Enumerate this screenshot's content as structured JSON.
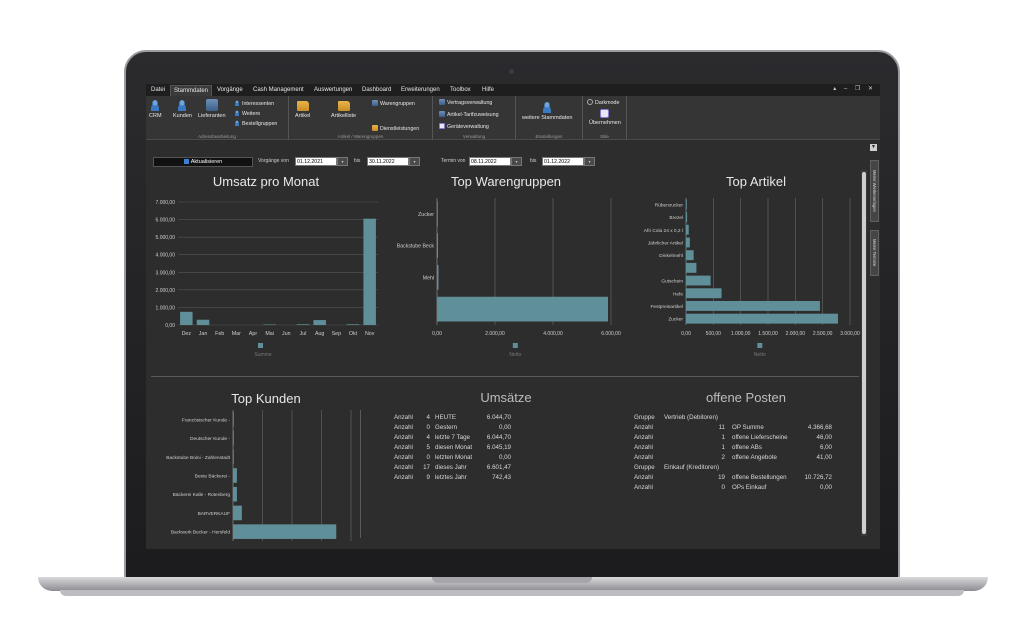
{
  "menu": {
    "tabs": [
      "Datei",
      "Stammdaten",
      "Vorgänge",
      "Cash Management",
      "Auswertungen",
      "Dashboard",
      "Erweiterungen",
      "Toolbox",
      "Hilfe"
    ],
    "active": "Stammdaten"
  },
  "ribbon": {
    "g1": {
      "label": "Adressbearbeitung",
      "crm": "CRM",
      "kunden": "Kunden",
      "lieferanten": "Lieferanten",
      "interessenten": "Interessenten",
      "weitere": "Weitere",
      "bestellgruppen": "Bestellgruppen"
    },
    "g2": {
      "label": "Artikel / Warengruppen",
      "artikel": "Artikel",
      "artikelliste": "Artikelliste",
      "warengruppen": "Warengruppen",
      "dienstleistungen": "Dienstleistungen"
    },
    "g3": {
      "label": "Verwaltung",
      "vertrag": "Vertragsverwaltung",
      "tarif": "Artikel-Tarifzuweisung",
      "geraete": "Geräteverwaltung"
    },
    "g4": {
      "label": "Einstellungen",
      "weitere_stammdaten": "weitere Stammdaten"
    },
    "g5": {
      "label": "Stile",
      "darkmode": "Darkmode",
      "uebernehmen": "Übernehmen"
    }
  },
  "filter": {
    "refresh_label": "Aktualisieren",
    "vorgaenge_von_label": "Vorgänge von",
    "vorgaenge_von": "01.12.2021",
    "bis1_label": "bis",
    "bis1": "30.11.2022",
    "termin_von_label": "Termin von",
    "termin_von": "08.11.2022",
    "bis2_label": "bis",
    "bis2": "01.12.2022"
  },
  "side_tabs": [
    "Meine Wiedervorlagen",
    "Meine Termine"
  ],
  "panels": {
    "umsatz_title": "Umsatz pro Monat",
    "warengruppen_title": "Top Warengruppen",
    "artikel_title": "Top Artikel",
    "kunden_title": "Top Kunden",
    "umsaetze_title": "Umsätze",
    "posten_title": "offene Posten"
  },
  "chart_data": [
    {
      "type": "bar",
      "title": "Umsatz pro Monat",
      "categories": [
        "Dez",
        "Jan",
        "Feb",
        "Mar",
        "Apr",
        "Mai",
        "Jun",
        "Jul",
        "Aug",
        "Sep",
        "Okt",
        "Nov"
      ],
      "series": [
        {
          "name": "Summe",
          "values": [
            750,
            300,
            0,
            0,
            0,
            30,
            0,
            40,
            280,
            0,
            40,
            6050
          ]
        }
      ],
      "yticks": [
        "0,00",
        "1.000,00",
        "2.000,00",
        "3.000,00",
        "4.000,00",
        "5.000,00",
        "6.000,00",
        "7.000,00"
      ],
      "ylim": [
        0,
        7000
      ],
      "color": "#5f8f98"
    },
    {
      "type": "bar",
      "orientation": "horizontal",
      "title": "Top Warengruppen",
      "categories": [
        "Zucker",
        "Backstube Beck",
        "Mehl",
        ""
      ],
      "series": [
        {
          "name": "Netto",
          "values": [
            20,
            40,
            60,
            6880
          ]
        }
      ],
      "xticks": [
        "0,00",
        "2.000,00",
        "4.000,00",
        "6.000,00"
      ],
      "xlim": [
        0,
        7000
      ],
      "color": "#5f8f98"
    },
    {
      "type": "bar",
      "orientation": "horizontal",
      "title": "Top Artikel",
      "categories": [
        "Rübenzucker",
        "Brezel",
        "Afri Cola 24 x 0,2 l",
        "Jährlicher Artikel",
        "Dinkelmehl",
        "",
        "Gutschein",
        "Hefe",
        "Festpreisartikel",
        "Zucker"
      ],
      "series": [
        {
          "name": "Netto",
          "values": [
            10,
            20,
            50,
            70,
            140,
            190,
            450,
            650,
            2450,
            2780
          ]
        }
      ],
      "xticks": [
        "0,00",
        "500,00",
        "1.000,00",
        "1.500,00",
        "2.000,00",
        "2.500,00",
        "3.000,00"
      ],
      "xlim": [
        0,
        3000
      ],
      "color": "#5f8f98"
    },
    {
      "type": "bar",
      "orientation": "horizontal",
      "title": "Top Kunden",
      "categories": [
        "Französischer Kunde -",
        "Deutscher Kunde -",
        "Backstube Boini - Zahlenstadt",
        "Beste Bäckerei -",
        "Bäckerei Kalle - Rotenberg",
        "BARVERKAUF",
        "Backwerk Becker - Hersfeld"
      ],
      "series": [
        {
          "name": "Netto",
          "values": [
            0,
            0,
            0,
            40,
            40,
            90,
            1050
          ]
        }
      ],
      "xlim": [
        0,
        1200
      ],
      "color": "#5f8f98"
    }
  ],
  "umsaetze": [
    {
      "label": "Anzahl",
      "count": "4",
      "period": "HEUTE",
      "value": "6.044,70"
    },
    {
      "label": "Anzahl",
      "count": "0",
      "period": "Gestern",
      "value": "0,00"
    },
    {
      "label": "Anzahl",
      "count": "4",
      "period": "letzte 7 Tage",
      "value": "6.044,70"
    },
    {
      "label": "Anzahl",
      "count": "5",
      "period": "diesen Monat",
      "value": "6.045,19"
    },
    {
      "label": "Anzahl",
      "count": "0",
      "period": "letzten Monat",
      "value": "0,00"
    },
    {
      "label": "Anzahl",
      "count": "17",
      "period": "dieses Jahr",
      "value": "6.601,47"
    },
    {
      "label": "Anzahl",
      "count": "9",
      "period": "letztes Jahr",
      "value": "742,43"
    }
  ],
  "posten": [
    {
      "label": "Gruppe",
      "count": "",
      "text": "Vertrieb (Debitoren)",
      "value": ""
    },
    {
      "label": "Anzahl",
      "count": "11",
      "text": "OP Summe",
      "value": "4.366,68"
    },
    {
      "label": "Anzahl",
      "count": "1",
      "text": "offene Lieferscheine",
      "value": "46,00"
    },
    {
      "label": "Anzahl",
      "count": "1",
      "text": "offene ABs",
      "value": "6,00"
    },
    {
      "label": "Anzahl",
      "count": "2",
      "text": "offene Angebote",
      "value": "41,00"
    },
    {
      "label": "Gruppe",
      "count": "",
      "text": "Einkauf (Kreditoren)",
      "value": ""
    },
    {
      "label": "Anzahl",
      "count": "19",
      "text": "offene Bestellungen",
      "value": "10.726,72"
    },
    {
      "label": "Anzahl",
      "count": "0",
      "text": "OPs Einkauf",
      "value": "0,00"
    }
  ]
}
